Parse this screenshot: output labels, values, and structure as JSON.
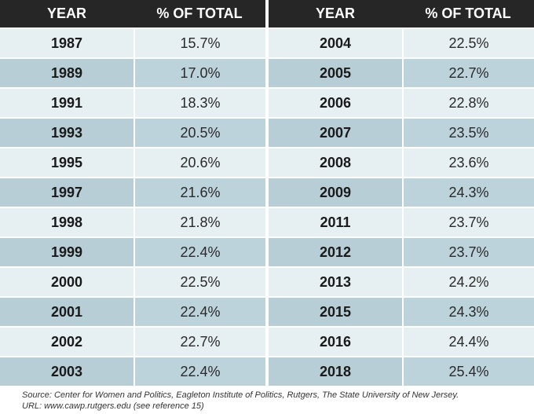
{
  "colors": {
    "header_bg": "#262626",
    "header_text": "#ffffff",
    "row_light": "#e6eff2",
    "row_dark": "#bdd3db"
  },
  "headers": {
    "year": "YEAR",
    "pct": "% OF TOTAL"
  },
  "chart_data": {
    "type": "table",
    "columns": [
      "YEAR",
      "% OF TOTAL"
    ],
    "rows": [
      [
        "1987",
        "15.7%"
      ],
      [
        "1989",
        "17.0%"
      ],
      [
        "1991",
        "18.3%"
      ],
      [
        "1993",
        "20.5%"
      ],
      [
        "1995",
        "20.6%"
      ],
      [
        "1997",
        "21.6%"
      ],
      [
        "1998",
        "21.8%"
      ],
      [
        "1999",
        "22.4%"
      ],
      [
        "2000",
        "22.5%"
      ],
      [
        "2001",
        "22.4%"
      ],
      [
        "2002",
        "22.7%"
      ],
      [
        "2003",
        "22.4%"
      ],
      [
        "2004",
        "22.5%"
      ],
      [
        "2005",
        "22.7%"
      ],
      [
        "2006",
        "22.8%"
      ],
      [
        "2007",
        "23.5%"
      ],
      [
        "2008",
        "23.6%"
      ],
      [
        "2009",
        "24.3%"
      ],
      [
        "2011",
        "23.7%"
      ],
      [
        "2012",
        "23.7%"
      ],
      [
        "2013",
        "24.2%"
      ],
      [
        "2015",
        "24.3%"
      ],
      [
        "2016",
        "24.4%"
      ],
      [
        "2018",
        "25.4%"
      ]
    ]
  },
  "source": {
    "line1": "Source: Center for Women and Politics, Eagleton Institute of Politics, Rutgers, The State University of New Jersey.",
    "line2": "URL:  www.cawp.rutgers.edu (see reference 15)"
  }
}
